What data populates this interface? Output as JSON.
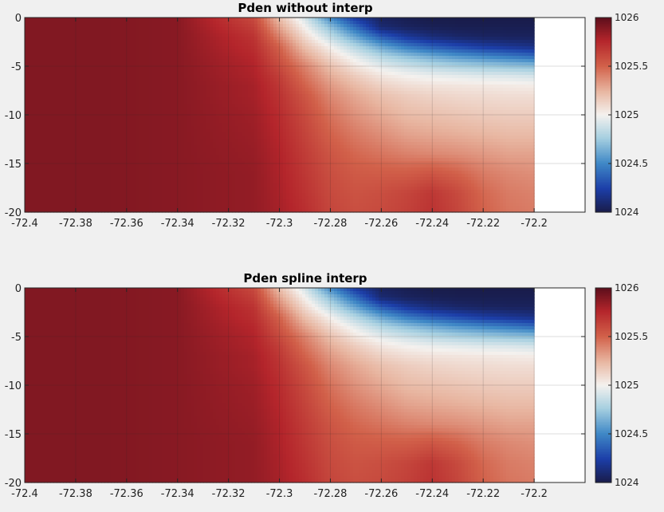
{
  "chart_data": [
    {
      "type": "heatmap",
      "title": "Pden without interp",
      "xlabel": "",
      "ylabel": "",
      "xlim": [
        -72.4,
        -72.18
      ],
      "ylim": [
        -20,
        0
      ],
      "x_data_extent": [
        -72.4,
        -72.2
      ],
      "xticks": [
        -72.4,
        -72.38,
        -72.36,
        -72.34,
        -72.32,
        -72.3,
        -72.28,
        -72.26,
        -72.24,
        -72.22,
        -72.2
      ],
      "xtick_labels": [
        "-72.4",
        "-72.38",
        "-72.36",
        "-72.34",
        "-72.32",
        "-72.3",
        "-72.28",
        "-72.26",
        "-72.24",
        "-72.22",
        "-72.2"
      ],
      "yticks": [
        0,
        -5,
        -10,
        -15,
        -20
      ],
      "ytick_labels": [
        "0",
        "-5",
        "-10",
        "-15",
        "-20"
      ],
      "grid": true,
      "colorbar": {
        "range": [
          1024,
          1026
        ],
        "ticks": [
          1024,
          1024.5,
          1025,
          1025.5,
          1026
        ],
        "tick_labels": [
          "1024",
          "1024.5",
          "1025",
          "1025.5",
          "1026"
        ]
      },
      "field": {
        "lons": [
          -72.4,
          -72.37,
          -72.34,
          -72.31,
          -72.3,
          -72.29,
          -72.28,
          -72.27,
          -72.26,
          -72.25,
          -72.24,
          -72.23,
          -72.22,
          -72.21,
          -72.2
        ],
        "depths": [
          0,
          -1,
          -2,
          -3,
          -4,
          -5,
          -6,
          -7,
          -8,
          -10,
          -12,
          -14,
          -16,
          -18,
          -20
        ],
        "values": [
          [
            1025.9,
            1025.9,
            1025.88,
            1025.6,
            1025.2,
            1024.9,
            1024.5,
            1024.2,
            1024.05,
            1024.02,
            1024.0,
            1024.0,
            1024.0,
            1024.0,
            1024.0
          ],
          [
            1025.9,
            1025.9,
            1025.88,
            1025.65,
            1025.3,
            1025.0,
            1024.7,
            1024.4,
            1024.1,
            1024.05,
            1024.03,
            1024.02,
            1024.02,
            1024.02,
            1024.02
          ],
          [
            1025.9,
            1025.9,
            1025.88,
            1025.7,
            1025.4,
            1025.1,
            1024.85,
            1024.6,
            1024.35,
            1024.2,
            1024.12,
            1024.08,
            1024.06,
            1024.05,
            1024.05
          ],
          [
            1025.9,
            1025.9,
            1025.88,
            1025.72,
            1025.5,
            1025.2,
            1025.0,
            1024.8,
            1024.6,
            1024.45,
            1024.35,
            1024.28,
            1024.22,
            1024.18,
            1024.15
          ],
          [
            1025.9,
            1025.9,
            1025.88,
            1025.75,
            1025.55,
            1025.3,
            1025.1,
            1024.95,
            1024.8,
            1024.7,
            1024.62,
            1024.55,
            1024.5,
            1024.45,
            1024.4
          ],
          [
            1025.9,
            1025.9,
            1025.88,
            1025.77,
            1025.6,
            1025.4,
            1025.2,
            1025.05,
            1024.95,
            1024.88,
            1024.82,
            1024.78,
            1024.75,
            1024.72,
            1024.7
          ],
          [
            1025.9,
            1025.9,
            1025.88,
            1025.78,
            1025.65,
            1025.45,
            1025.27,
            1025.15,
            1025.05,
            1025.0,
            1024.97,
            1024.95,
            1024.93,
            1024.92,
            1024.9
          ],
          [
            1025.9,
            1025.9,
            1025.88,
            1025.8,
            1025.68,
            1025.5,
            1025.33,
            1025.22,
            1025.13,
            1025.08,
            1025.06,
            1025.05,
            1025.04,
            1025.03,
            1025.02
          ],
          [
            1025.9,
            1025.9,
            1025.88,
            1025.8,
            1025.7,
            1025.55,
            1025.38,
            1025.28,
            1025.2,
            1025.15,
            1025.12,
            1025.1,
            1025.09,
            1025.08,
            1025.08
          ],
          [
            1025.9,
            1025.9,
            1025.88,
            1025.82,
            1025.73,
            1025.6,
            1025.45,
            1025.35,
            1025.28,
            1025.22,
            1025.2,
            1025.18,
            1025.16,
            1025.15,
            1025.15
          ],
          [
            1025.9,
            1025.9,
            1025.88,
            1025.83,
            1025.75,
            1025.63,
            1025.5,
            1025.42,
            1025.36,
            1025.3,
            1025.28,
            1025.26,
            1025.24,
            1025.22,
            1025.22
          ],
          [
            1025.9,
            1025.9,
            1025.88,
            1025.84,
            1025.77,
            1025.66,
            1025.55,
            1025.48,
            1025.44,
            1025.4,
            1025.38,
            1025.36,
            1025.33,
            1025.3,
            1025.3
          ],
          [
            1025.9,
            1025.9,
            1025.88,
            1025.85,
            1025.78,
            1025.68,
            1025.58,
            1025.53,
            1025.52,
            1025.52,
            1025.55,
            1025.5,
            1025.42,
            1025.38,
            1025.36
          ],
          [
            1025.9,
            1025.9,
            1025.88,
            1025.85,
            1025.79,
            1025.7,
            1025.6,
            1025.56,
            1025.58,
            1025.62,
            1025.68,
            1025.6,
            1025.48,
            1025.42,
            1025.4
          ],
          [
            1025.9,
            1025.9,
            1025.88,
            1025.85,
            1025.8,
            1025.72,
            1025.62,
            1025.58,
            1025.6,
            1025.64,
            1025.7,
            1025.62,
            1025.5,
            1025.44,
            1025.42
          ]
        ]
      }
    },
    {
      "type": "heatmap",
      "title": "Pden spline interp",
      "xlabel": "",
      "ylabel": "",
      "xlim": [
        -72.4,
        -72.18
      ],
      "ylim": [
        -20,
        0
      ],
      "x_data_extent": [
        -72.4,
        -72.2
      ],
      "xticks": [
        -72.4,
        -72.38,
        -72.36,
        -72.34,
        -72.32,
        -72.3,
        -72.28,
        -72.26,
        -72.24,
        -72.22,
        -72.2
      ],
      "xtick_labels": [
        "-72.4",
        "-72.38",
        "-72.36",
        "-72.34",
        "-72.32",
        "-72.3",
        "-72.28",
        "-72.26",
        "-72.24",
        "-72.22",
        "-72.2"
      ],
      "yticks": [
        0,
        -5,
        -10,
        -15,
        -20
      ],
      "ytick_labels": [
        "0",
        "-5",
        "-10",
        "-15",
        "-20"
      ],
      "grid": true,
      "colorbar": {
        "range": [
          1024,
          1026
        ],
        "ticks": [
          1024,
          1024.5,
          1025,
          1025.5,
          1026
        ],
        "tick_labels": [
          "1024",
          "1024.5",
          "1025",
          "1025.5",
          "1026"
        ]
      },
      "field": {
        "lons": [
          -72.4,
          -72.37,
          -72.34,
          -72.31,
          -72.3,
          -72.29,
          -72.28,
          -72.27,
          -72.26,
          -72.25,
          -72.24,
          -72.23,
          -72.22,
          -72.21,
          -72.2
        ],
        "depths": [
          0,
          -1,
          -2,
          -3,
          -4,
          -5,
          -6,
          -7,
          -8,
          -10,
          -12,
          -14,
          -16,
          -18,
          -20
        ],
        "values": [
          [
            1025.9,
            1025.9,
            1025.88,
            1025.6,
            1025.2,
            1024.9,
            1024.5,
            1024.2,
            1024.05,
            1024.02,
            1024.0,
            1024.0,
            1024.0,
            1024.0,
            1024.0
          ],
          [
            1025.9,
            1025.9,
            1025.88,
            1025.65,
            1025.3,
            1025.0,
            1024.7,
            1024.4,
            1024.1,
            1024.05,
            1024.03,
            1024.02,
            1024.02,
            1024.02,
            1024.02
          ],
          [
            1025.9,
            1025.9,
            1025.88,
            1025.7,
            1025.4,
            1025.1,
            1024.85,
            1024.6,
            1024.35,
            1024.2,
            1024.12,
            1024.08,
            1024.06,
            1024.05,
            1024.05
          ],
          [
            1025.9,
            1025.9,
            1025.88,
            1025.72,
            1025.5,
            1025.2,
            1025.0,
            1024.8,
            1024.6,
            1024.45,
            1024.35,
            1024.28,
            1024.22,
            1024.18,
            1024.15
          ],
          [
            1025.9,
            1025.9,
            1025.88,
            1025.75,
            1025.55,
            1025.3,
            1025.1,
            1024.95,
            1024.8,
            1024.7,
            1024.62,
            1024.55,
            1024.5,
            1024.45,
            1024.4
          ],
          [
            1025.9,
            1025.9,
            1025.88,
            1025.77,
            1025.6,
            1025.4,
            1025.2,
            1025.05,
            1024.95,
            1024.88,
            1024.82,
            1024.78,
            1024.75,
            1024.72,
            1024.7
          ],
          [
            1025.9,
            1025.9,
            1025.88,
            1025.78,
            1025.65,
            1025.45,
            1025.27,
            1025.15,
            1025.05,
            1025.0,
            1024.97,
            1024.95,
            1024.93,
            1024.92,
            1024.9
          ],
          [
            1025.9,
            1025.9,
            1025.88,
            1025.8,
            1025.68,
            1025.5,
            1025.33,
            1025.22,
            1025.13,
            1025.08,
            1025.06,
            1025.05,
            1025.04,
            1025.03,
            1025.02
          ],
          [
            1025.9,
            1025.9,
            1025.88,
            1025.8,
            1025.7,
            1025.55,
            1025.38,
            1025.28,
            1025.2,
            1025.15,
            1025.12,
            1025.1,
            1025.09,
            1025.08,
            1025.08
          ],
          [
            1025.9,
            1025.9,
            1025.88,
            1025.82,
            1025.73,
            1025.6,
            1025.45,
            1025.35,
            1025.28,
            1025.22,
            1025.2,
            1025.18,
            1025.16,
            1025.15,
            1025.15
          ],
          [
            1025.9,
            1025.9,
            1025.88,
            1025.83,
            1025.75,
            1025.63,
            1025.5,
            1025.42,
            1025.36,
            1025.3,
            1025.28,
            1025.26,
            1025.24,
            1025.22,
            1025.22
          ],
          [
            1025.9,
            1025.9,
            1025.88,
            1025.84,
            1025.77,
            1025.66,
            1025.55,
            1025.48,
            1025.44,
            1025.4,
            1025.38,
            1025.36,
            1025.33,
            1025.3,
            1025.3
          ],
          [
            1025.9,
            1025.9,
            1025.88,
            1025.85,
            1025.78,
            1025.68,
            1025.58,
            1025.53,
            1025.52,
            1025.52,
            1025.55,
            1025.5,
            1025.42,
            1025.38,
            1025.36
          ],
          [
            1025.9,
            1025.9,
            1025.88,
            1025.85,
            1025.79,
            1025.7,
            1025.6,
            1025.56,
            1025.58,
            1025.62,
            1025.68,
            1025.6,
            1025.48,
            1025.42,
            1025.4
          ],
          [
            1025.9,
            1025.9,
            1025.88,
            1025.85,
            1025.8,
            1025.72,
            1025.62,
            1025.58,
            1025.6,
            1025.64,
            1025.7,
            1025.62,
            1025.5,
            1025.44,
            1025.42
          ]
        ]
      }
    }
  ],
  "colormap": {
    "stops": [
      [
        0.0,
        "#191c4a"
      ],
      [
        0.12,
        "#1c3ea8"
      ],
      [
        0.25,
        "#3f88c6"
      ],
      [
        0.38,
        "#a6cfe0"
      ],
      [
        0.5,
        "#f4f1ee"
      ],
      [
        0.62,
        "#e8b6a1"
      ],
      [
        0.75,
        "#d2614a"
      ],
      [
        0.88,
        "#b4252b"
      ],
      [
        1.0,
        "#5c0e1b"
      ]
    ]
  }
}
